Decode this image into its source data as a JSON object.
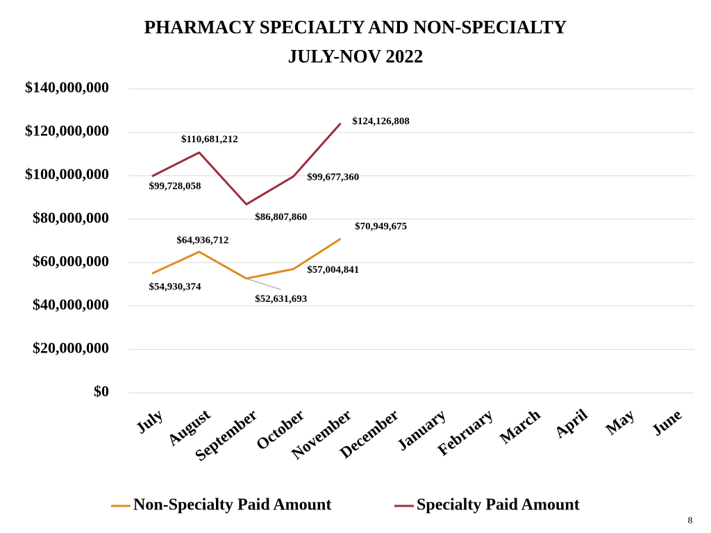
{
  "chart_data": {
    "type": "line",
    "title": "PHARMACY SPECIALTY AND NON-SPECIALTY",
    "subtitle": "JULY-NOV 2022",
    "categories": [
      "July",
      "August",
      "September",
      "October",
      "November",
      "December",
      "January",
      "February",
      "March",
      "April",
      "May",
      "June"
    ],
    "series": [
      {
        "name": "Non-Specialty Paid Amount",
        "color": "#e08a1e",
        "values": [
          54930374,
          64936712,
          52631693,
          57004841,
          70949675,
          null,
          null,
          null,
          null,
          null,
          null,
          null
        ],
        "value_labels": [
          "$54,930,374",
          "$64,936,712",
          "$52,631,693",
          "$57,004,841",
          "$70,949,675",
          null,
          null,
          null,
          null,
          null,
          null,
          null
        ]
      },
      {
        "name": "Specialty Paid Amount",
        "color": "#9b2d3a",
        "values": [
          99728058,
          110681212,
          86807860,
          99677360,
          124126808,
          null,
          null,
          null,
          null,
          null,
          null,
          null
        ],
        "value_labels": [
          "$99,728,058",
          "$110,681,212",
          "$86,807,860",
          "$99,677,360",
          "$124,126,808",
          null,
          null,
          null,
          null,
          null,
          null,
          null
        ]
      }
    ],
    "ylim": [
      0,
      140000000
    ],
    "yticks": [
      {
        "value": 0,
        "label": "$0"
      },
      {
        "value": 20000000,
        "label": "$20,000,000"
      },
      {
        "value": 40000000,
        "label": "$40,000,000"
      },
      {
        "value": 60000000,
        "label": "$60,000,000"
      },
      {
        "value": 80000000,
        "label": "$80,000,000"
      },
      {
        "value": 100000000,
        "label": "$100,000,000"
      },
      {
        "value": 120000000,
        "label": "$120,000,000"
      },
      {
        "value": 140000000,
        "label": "$140,000,000"
      }
    ],
    "grid": true,
    "legend": "bottom"
  },
  "slide_number": "8"
}
